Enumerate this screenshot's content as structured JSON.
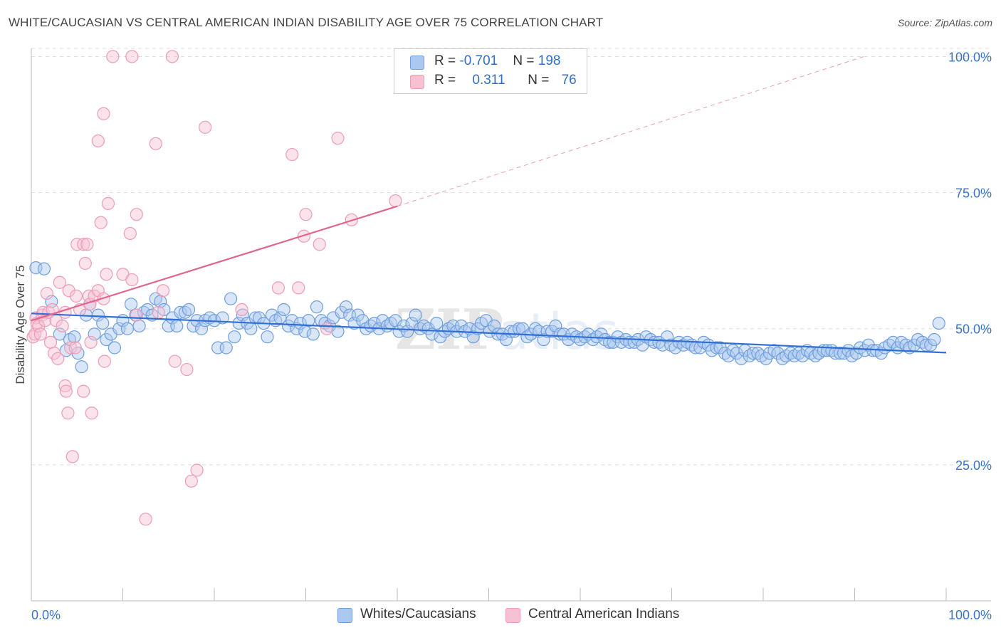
{
  "header": {
    "title": "WHITE/CAUCASIAN VS CENTRAL AMERICAN INDIAN DISABILITY AGE OVER 75 CORRELATION CHART",
    "source": "Source: ZipAtlas.com"
  },
  "legend": {
    "blue": {
      "r_label": "R = ",
      "r_value": "-0.701",
      "n_label": "N = ",
      "n_value": "198"
    },
    "pink": {
      "r_label": "R = ",
      "r_value": "0.311",
      "n_label": "N = ",
      "n_value": "76"
    }
  },
  "colors": {
    "blue_fill": "#aac8f0",
    "blue_stroke": "#6f9fdc",
    "blue_line": "#2f6fd6",
    "pink_fill": "#f6c2d2",
    "pink_stroke": "#ec9cb6",
    "pink_line": "#e0648f",
    "tick_label": "#3a73c8",
    "grid": "#dddddd"
  },
  "chart_data": {
    "type": "scatter",
    "title": "WHITE/CAUCASIAN VS CENTRAL AMERICAN INDIAN DISABILITY AGE OVER 75 CORRELATION CHART",
    "xlabel": "",
    "ylabel": "Disability Age Over 75",
    "xlim": [
      0,
      100
    ],
    "ylim": [
      0,
      101.5
    ],
    "x_tick_labels": [
      "0.0%",
      "100.0%"
    ],
    "y_ticks": [
      25,
      50,
      75,
      100
    ],
    "y_tick_labels": [
      "25.0%",
      "50.0%",
      "75.0%",
      "100.0%"
    ],
    "watermark": "ZIPatlas",
    "legend_position": "top-center",
    "series": [
      {
        "name": "Whites/Caucasians",
        "color": "#6f9fdc",
        "trend": {
          "x0": 0,
          "y0": 52.8,
          "x1": 100,
          "y1": 45.6,
          "style": "solid"
        },
        "points": [
          [
            0.5,
            61.2
          ],
          [
            1.4,
            61.0
          ],
          [
            2.2,
            55.0
          ],
          [
            3.1,
            49.0
          ],
          [
            3.8,
            46.0
          ],
          [
            4.2,
            48.0
          ],
          [
            4.7,
            48.5
          ],
          [
            5.1,
            45.5
          ],
          [
            5.5,
            43.0
          ],
          [
            6.0,
            52.5
          ],
          [
            6.4,
            54.5
          ],
          [
            6.9,
            49.0
          ],
          [
            7.3,
            52.5
          ],
          [
            7.8,
            51.0
          ],
          [
            8.2,
            48.0
          ],
          [
            8.7,
            49.0
          ],
          [
            9.1,
            46.5
          ],
          [
            9.6,
            50.0
          ],
          [
            10.0,
            51.5
          ],
          [
            10.5,
            50.0
          ],
          [
            10.9,
            54.5
          ],
          [
            11.4,
            52.5
          ],
          [
            11.8,
            50.5
          ],
          [
            12.3,
            53.0
          ],
          [
            12.7,
            53.5
          ],
          [
            13.2,
            52.5
          ],
          [
            13.6,
            55.5
          ],
          [
            14.1,
            55.0
          ],
          [
            14.5,
            53.5
          ],
          [
            15.0,
            50.5
          ],
          [
            15.4,
            52.0
          ],
          [
            15.9,
            50.5
          ],
          [
            16.3,
            53.0
          ],
          [
            16.8,
            53.0
          ],
          [
            17.2,
            53.5
          ],
          [
            17.7,
            50.5
          ],
          [
            18.1,
            51.5
          ],
          [
            18.6,
            50.0
          ],
          [
            19.0,
            51.5
          ],
          [
            19.5,
            52.0
          ],
          [
            20.0,
            51.5
          ],
          [
            20.4,
            46.5
          ],
          [
            20.9,
            52.0
          ],
          [
            21.3,
            46.5
          ],
          [
            21.8,
            55.5
          ],
          [
            22.2,
            48.5
          ],
          [
            22.7,
            51.0
          ],
          [
            23.1,
            52.5
          ],
          [
            23.6,
            51.0
          ],
          [
            24.0,
            50.0
          ],
          [
            24.5,
            52.0
          ],
          [
            24.9,
            52.0
          ],
          [
            25.4,
            51.0
          ],
          [
            25.8,
            48.5
          ],
          [
            26.3,
            52.5
          ],
          [
            26.7,
            51.5
          ],
          [
            27.2,
            52.0
          ],
          [
            27.6,
            53.5
          ],
          [
            28.1,
            50.5
          ],
          [
            28.5,
            51.5
          ],
          [
            29.0,
            50.0
          ],
          [
            29.4,
            51.0
          ],
          [
            29.9,
            49.5
          ],
          [
            30.3,
            51.5
          ],
          [
            30.8,
            49.0
          ],
          [
            31.2,
            54.0
          ],
          [
            31.7,
            51.5
          ],
          [
            32.1,
            51.0
          ],
          [
            32.6,
            50.5
          ],
          [
            33.0,
            52.0
          ],
          [
            33.5,
            49.5
          ],
          [
            33.9,
            53.0
          ],
          [
            34.4,
            54.0
          ],
          [
            34.8,
            52.5
          ],
          [
            35.3,
            51.0
          ],
          [
            35.7,
            52.5
          ],
          [
            36.2,
            51.5
          ],
          [
            36.6,
            50.0
          ],
          [
            37.1,
            50.5
          ],
          [
            37.5,
            51.0
          ],
          [
            38.0,
            50.0
          ],
          [
            38.4,
            51.5
          ],
          [
            38.9,
            50.5
          ],
          [
            39.3,
            51.0
          ],
          [
            39.8,
            51.5
          ],
          [
            40.2,
            49.5
          ],
          [
            40.7,
            50.5
          ],
          [
            41.1,
            49.5
          ],
          [
            41.6,
            51.0
          ],
          [
            42.0,
            52.5
          ],
          [
            42.5,
            50.0
          ],
          [
            42.9,
            50.5
          ],
          [
            43.4,
            50.0
          ],
          [
            43.8,
            49.0
          ],
          [
            44.3,
            51.0
          ],
          [
            44.7,
            48.5
          ],
          [
            45.2,
            49.5
          ],
          [
            45.6,
            50.0
          ],
          [
            46.1,
            50.5
          ],
          [
            46.5,
            49.5
          ],
          [
            47.0,
            50.5
          ],
          [
            47.4,
            49.5
          ],
          [
            47.9,
            50.0
          ],
          [
            48.3,
            48.5
          ],
          [
            48.8,
            50.0
          ],
          [
            49.2,
            51.0
          ],
          [
            49.7,
            51.5
          ],
          [
            50.1,
            49.5
          ],
          [
            50.6,
            50.5
          ],
          [
            51.0,
            49.0
          ],
          [
            51.5,
            49.0
          ],
          [
            51.9,
            48.0
          ],
          [
            52.4,
            49.5
          ],
          [
            52.8,
            49.5
          ],
          [
            53.3,
            50.0
          ],
          [
            53.7,
            50.0
          ],
          [
            54.2,
            48.5
          ],
          [
            54.6,
            49.0
          ],
          [
            55.1,
            50.0
          ],
          [
            55.5,
            49.5
          ],
          [
            56.0,
            48.0
          ],
          [
            56.4,
            49.5
          ],
          [
            56.9,
            49.5
          ],
          [
            57.3,
            50.5
          ],
          [
            57.8,
            49.0
          ],
          [
            58.2,
            49.0
          ],
          [
            58.7,
            48.0
          ],
          [
            59.1,
            49.0
          ],
          [
            59.6,
            48.5
          ],
          [
            60.0,
            48.0
          ],
          [
            60.5,
            48.5
          ],
          [
            60.9,
            49.0
          ],
          [
            61.4,
            48.0
          ],
          [
            61.8,
            48.5
          ],
          [
            62.3,
            49.0
          ],
          [
            62.7,
            48.0
          ],
          [
            63.2,
            47.5
          ],
          [
            63.6,
            47.5
          ],
          [
            64.1,
            48.5
          ],
          [
            64.5,
            47.5
          ],
          [
            65.0,
            48.0
          ],
          [
            65.4,
            47.5
          ],
          [
            65.9,
            47.5
          ],
          [
            66.3,
            48.0
          ],
          [
            66.8,
            47.0
          ],
          [
            67.2,
            48.5
          ],
          [
            67.7,
            48.0
          ],
          [
            68.1,
            47.5
          ],
          [
            68.6,
            47.5
          ],
          [
            69.0,
            47.0
          ],
          [
            69.5,
            48.5
          ],
          [
            69.9,
            47.0
          ],
          [
            70.4,
            46.5
          ],
          [
            70.8,
            47.5
          ],
          [
            71.3,
            47.0
          ],
          [
            71.7,
            47.5
          ],
          [
            72.2,
            47.0
          ],
          [
            72.6,
            46.5
          ],
          [
            73.1,
            46.5
          ],
          [
            73.5,
            47.5
          ],
          [
            74.0,
            47.0
          ],
          [
            74.4,
            46.0
          ],
          [
            74.9,
            46.5
          ],
          [
            75.3,
            46.5
          ],
          [
            75.8,
            45.5
          ],
          [
            76.2,
            45.0
          ],
          [
            76.7,
            46.0
          ],
          [
            77.1,
            45.5
          ],
          [
            77.6,
            44.5
          ],
          [
            78.0,
            46.0
          ],
          [
            78.5,
            45.0
          ],
          [
            78.9,
            45.5
          ],
          [
            79.4,
            45.5
          ],
          [
            79.8,
            45.0
          ],
          [
            80.3,
            44.5
          ],
          [
            80.7,
            45.5
          ],
          [
            81.2,
            46.0
          ],
          [
            81.6,
            45.5
          ],
          [
            82.1,
            44.5
          ],
          [
            82.5,
            45.0
          ],
          [
            83.0,
            45.5
          ],
          [
            83.4,
            45.0
          ],
          [
            83.9,
            45.5
          ],
          [
            84.3,
            45.0
          ],
          [
            84.8,
            46.0
          ],
          [
            85.2,
            45.5
          ],
          [
            85.7,
            45.0
          ],
          [
            86.1,
            45.5
          ],
          [
            86.6,
            46.0
          ],
          [
            87.0,
            46.0
          ],
          [
            87.5,
            46.0
          ],
          [
            87.9,
            45.5
          ],
          [
            88.4,
            45.5
          ],
          [
            88.8,
            45.5
          ],
          [
            89.3,
            46.0
          ],
          [
            89.7,
            45.0
          ],
          [
            90.2,
            45.5
          ],
          [
            90.6,
            46.5
          ],
          [
            91.1,
            46.0
          ],
          [
            91.5,
            47.0
          ],
          [
            92.0,
            46.0
          ],
          [
            92.4,
            46.0
          ],
          [
            92.9,
            45.5
          ],
          [
            93.3,
            46.5
          ],
          [
            93.8,
            47.0
          ],
          [
            94.2,
            47.5
          ],
          [
            94.7,
            46.5
          ],
          [
            95.1,
            47.5
          ],
          [
            95.6,
            47.0
          ],
          [
            96.0,
            46.5
          ],
          [
            96.5,
            47.0
          ],
          [
            96.9,
            48.0
          ],
          [
            97.4,
            47.5
          ],
          [
            97.8,
            47.0
          ],
          [
            98.3,
            47.0
          ],
          [
            98.7,
            48.0
          ],
          [
            99.2,
            51.0
          ]
        ]
      },
      {
        "name": "Central American Indians",
        "color": "#ec9cb6",
        "trend": {
          "x0": 0,
          "y0": 51.5,
          "x1": 40,
          "y1": 72.5,
          "style": "solid",
          "extension_to": [
            91,
            100
          ],
          "extension_style": "dashed"
        },
        "points": [
          [
            0.2,
            48.5
          ],
          [
            0.4,
            49.0
          ],
          [
            0.5,
            52.0
          ],
          [
            0.6,
            51.0
          ],
          [
            0.8,
            50.5
          ],
          [
            1.0,
            49.0
          ],
          [
            1.2,
            52.5
          ],
          [
            1.3,
            53.0
          ],
          [
            1.5,
            51.5
          ],
          [
            1.7,
            56.5
          ],
          [
            1.9,
            53.0
          ],
          [
            2.1,
            47.5
          ],
          [
            2.3,
            53.5
          ],
          [
            2.5,
            45.5
          ],
          [
            2.7,
            51.5
          ],
          [
            2.9,
            44.5
          ],
          [
            3.1,
            58.5
          ],
          [
            3.4,
            50.5
          ],
          [
            3.7,
            53.0
          ],
          [
            3.7,
            39.5
          ],
          [
            3.8,
            38.5
          ],
          [
            4.0,
            34.5
          ],
          [
            4.1,
            57.0
          ],
          [
            4.3,
            46.5
          ],
          [
            4.5,
            26.5
          ],
          [
            4.8,
            46.5
          ],
          [
            4.9,
            56.0
          ],
          [
            5.0,
            65.5
          ],
          [
            5.3,
            53.5
          ],
          [
            5.7,
            65.5
          ],
          [
            5.7,
            38.5
          ],
          [
            5.9,
            62.0
          ],
          [
            6.1,
            65.5
          ],
          [
            6.3,
            56.0
          ],
          [
            6.4,
            54.5
          ],
          [
            6.5,
            47.5
          ],
          [
            6.6,
            34.5
          ],
          [
            6.9,
            56.0
          ],
          [
            7.3,
            57.0
          ],
          [
            7.3,
            84.5
          ],
          [
            7.6,
            69.5
          ],
          [
            7.9,
            55.5
          ],
          [
            7.9,
            89.5
          ],
          [
            8.0,
            44.0
          ],
          [
            8.2,
            60.0
          ],
          [
            8.4,
            73.0
          ],
          [
            8.9,
            100.0
          ],
          [
            10.0,
            60.0
          ],
          [
            10.8,
            67.5
          ],
          [
            11.0,
            59.0
          ],
          [
            11.0,
            100.0
          ],
          [
            11.5,
            52.5
          ],
          [
            11.5,
            71.0
          ],
          [
            12.5,
            15.0
          ],
          [
            13.6,
            84.0
          ],
          [
            13.9,
            53.0
          ],
          [
            14.4,
            57.0
          ],
          [
            15.4,
            100.0
          ],
          [
            15.7,
            44.0
          ],
          [
            17.0,
            42.5
          ],
          [
            17.5,
            22.0
          ],
          [
            18.1,
            24.0
          ],
          [
            19.0,
            87.0
          ],
          [
            23.0,
            53.5
          ],
          [
            27.0,
            57.5
          ],
          [
            28.5,
            82.0
          ],
          [
            29.2,
            57.5
          ],
          [
            29.8,
            67.0
          ],
          [
            30.0,
            71.0
          ],
          [
            31.5,
            65.5
          ],
          [
            32.3,
            50.0
          ],
          [
            33.5,
            85.0
          ],
          [
            35.0,
            70.0
          ],
          [
            39.8,
            73.5
          ]
        ]
      }
    ]
  }
}
